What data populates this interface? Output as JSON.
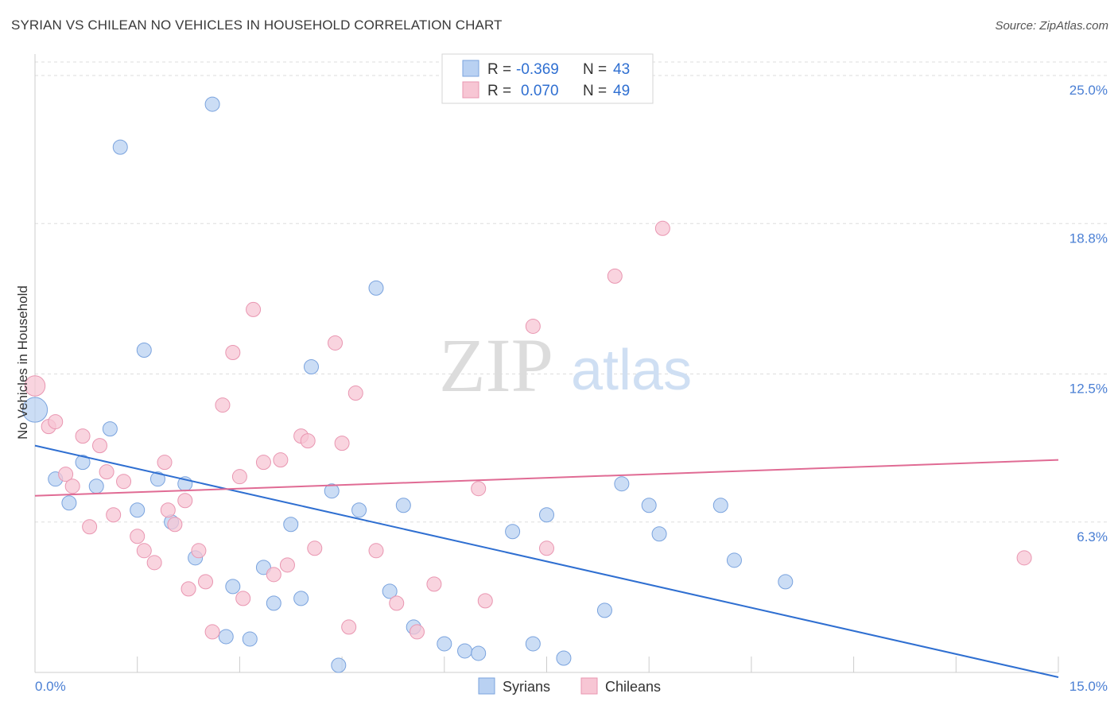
{
  "title": "SYRIAN VS CHILEAN NO VEHICLES IN HOUSEHOLD CORRELATION CHART",
  "source": "Source: ZipAtlas.com",
  "watermark": {
    "zip": "ZIP",
    "atlas": "atlas"
  },
  "colors": {
    "syrians_fill": "#b9d1f2",
    "syrians_stroke": "#7aa3de",
    "syrians_line": "#2f6fd1",
    "chileans_fill": "#f7c6d4",
    "chileans_stroke": "#e996b1",
    "chileans_line": "#e06b94",
    "tick_label": "#4a7fd4",
    "grid": "#dddddd"
  },
  "legend": {
    "rows": [
      {
        "r_label": "R =",
        "r_value": "-0.369",
        "n_label": "N =",
        "n_value": "43"
      },
      {
        "r_label": "R =",
        "r_value": "0.070",
        "n_label": "N =",
        "n_value": "49"
      }
    ]
  },
  "bottom_legend": [
    "Syrians",
    "Chileans"
  ],
  "chart_data": {
    "type": "scatter",
    "ylabel": "No Vehicles in Household",
    "xlim": [
      0,
      15
    ],
    "ylim": [
      0,
      25.9
    ],
    "x_tick_labels": [
      "0.0%",
      "15.0%"
    ],
    "y_ticks": [
      6.3,
      12.5,
      18.8,
      25.0
    ],
    "y_tick_labels": [
      "6.3%",
      "12.5%",
      "18.8%",
      "25.0%"
    ],
    "grid": true,
    "legend_position": "top-center",
    "series": [
      {
        "name": "Syrians",
        "trend": {
          "x": [
            0,
            15
          ],
          "y": [
            9.5,
            -0.2
          ]
        },
        "points": [
          [
            0.0,
            11.0,
            3
          ],
          [
            0.3,
            8.1,
            1
          ],
          [
            0.5,
            7.1,
            1
          ],
          [
            0.7,
            8.8,
            1
          ],
          [
            0.9,
            7.8,
            1
          ],
          [
            1.1,
            10.2,
            1
          ],
          [
            1.25,
            22.0,
            1
          ],
          [
            1.5,
            6.8,
            1
          ],
          [
            1.6,
            13.5,
            1
          ],
          [
            1.8,
            8.1,
            1
          ],
          [
            2.0,
            6.3,
            1
          ],
          [
            2.2,
            7.9,
            1
          ],
          [
            2.35,
            4.8,
            1
          ],
          [
            2.6,
            23.8,
            1
          ],
          [
            2.8,
            1.5,
            1
          ],
          [
            2.9,
            3.6,
            1
          ],
          [
            3.15,
            1.4,
            1
          ],
          [
            3.35,
            4.4,
            1
          ],
          [
            3.5,
            2.9,
            1
          ],
          [
            3.75,
            6.2,
            1
          ],
          [
            3.9,
            3.1,
            1
          ],
          [
            4.05,
            12.8,
            1
          ],
          [
            4.35,
            7.6,
            1
          ],
          [
            4.45,
            0.3,
            1
          ],
          [
            4.75,
            6.8,
            1
          ],
          [
            5.0,
            16.1,
            1
          ],
          [
            5.2,
            3.4,
            1
          ],
          [
            5.4,
            7.0,
            1
          ],
          [
            5.55,
            1.9,
            1
          ],
          [
            6.0,
            1.2,
            1
          ],
          [
            6.3,
            0.9,
            1
          ],
          [
            6.5,
            0.8,
            1
          ],
          [
            7.0,
            5.9,
            1
          ],
          [
            7.3,
            1.2,
            1
          ],
          [
            7.5,
            6.6,
            1
          ],
          [
            7.75,
            0.6,
            1
          ],
          [
            8.35,
            2.6,
            1
          ],
          [
            8.6,
            7.9,
            1
          ],
          [
            9.0,
            7.0,
            1
          ],
          [
            9.15,
            5.8,
            1
          ],
          [
            10.05,
            7.0,
            1
          ],
          [
            10.25,
            4.7,
            1
          ],
          [
            11.0,
            3.8,
            1
          ]
        ]
      },
      {
        "name": "Chileans",
        "trend": {
          "x": [
            0,
            15
          ],
          "y": [
            7.4,
            8.9
          ]
        },
        "points": [
          [
            0.0,
            12.0,
            2
          ],
          [
            0.2,
            10.3,
            1
          ],
          [
            0.3,
            10.5,
            1
          ],
          [
            0.45,
            8.3,
            1
          ],
          [
            0.55,
            7.8,
            1
          ],
          [
            0.7,
            9.9,
            1
          ],
          [
            0.8,
            6.1,
            1
          ],
          [
            0.95,
            9.5,
            1
          ],
          [
            1.05,
            8.4,
            1
          ],
          [
            1.15,
            6.6,
            1
          ],
          [
            1.3,
            8.0,
            1
          ],
          [
            1.5,
            5.7,
            1
          ],
          [
            1.6,
            5.1,
            1
          ],
          [
            1.75,
            4.6,
            1
          ],
          [
            1.9,
            8.8,
            1
          ],
          [
            1.95,
            6.8,
            1
          ],
          [
            2.05,
            6.2,
            1
          ],
          [
            2.2,
            7.2,
            1
          ],
          [
            2.25,
            3.5,
            1
          ],
          [
            2.4,
            5.1,
            1
          ],
          [
            2.5,
            3.8,
            1
          ],
          [
            2.6,
            1.7,
            1
          ],
          [
            2.75,
            11.2,
            1
          ],
          [
            2.9,
            13.4,
            1
          ],
          [
            3.0,
            8.2,
            1
          ],
          [
            3.05,
            3.1,
            1
          ],
          [
            3.2,
            15.2,
            1
          ],
          [
            3.35,
            8.8,
            1
          ],
          [
            3.5,
            4.1,
            1
          ],
          [
            3.6,
            8.9,
            1
          ],
          [
            3.7,
            4.5,
            1
          ],
          [
            3.9,
            9.9,
            1
          ],
          [
            4.0,
            9.7,
            1
          ],
          [
            4.1,
            5.2,
            1
          ],
          [
            4.4,
            13.8,
            1
          ],
          [
            4.5,
            9.6,
            1
          ],
          [
            4.6,
            1.9,
            1
          ],
          [
            4.7,
            11.7,
            1
          ],
          [
            5.0,
            5.1,
            1
          ],
          [
            5.3,
            2.9,
            1
          ],
          [
            5.6,
            1.7,
            1
          ],
          [
            5.85,
            3.7,
            1
          ],
          [
            6.5,
            7.7,
            1
          ],
          [
            6.6,
            3.0,
            1
          ],
          [
            7.3,
            14.5,
            1
          ],
          [
            7.5,
            5.2,
            1
          ],
          [
            8.5,
            16.6,
            1
          ],
          [
            9.2,
            18.6,
            1
          ],
          [
            14.5,
            4.8,
            1
          ]
        ]
      }
    ]
  }
}
